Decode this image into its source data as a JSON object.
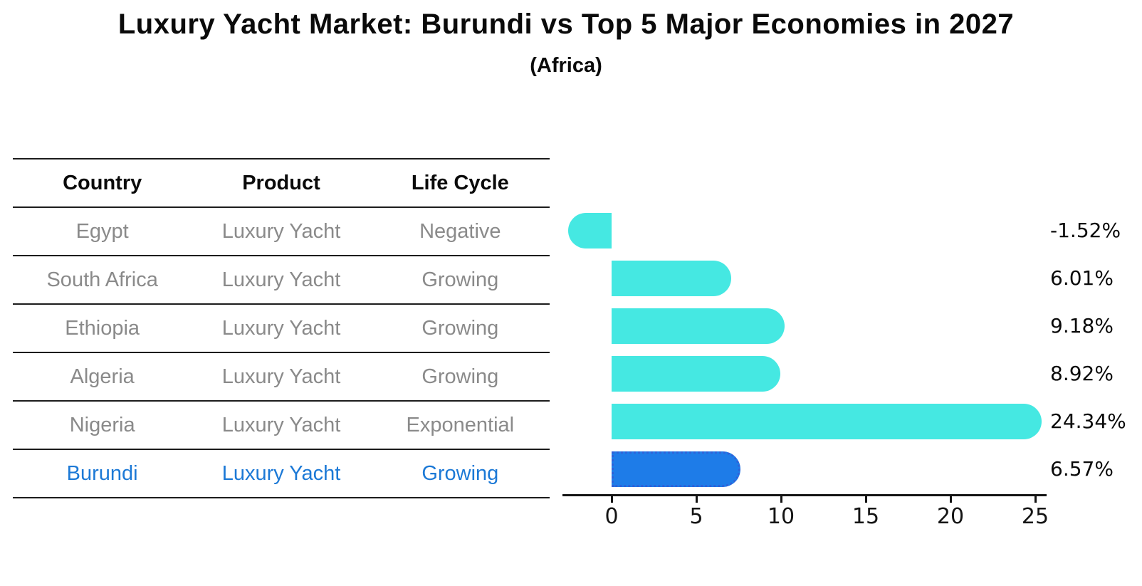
{
  "title": "Luxury Yacht Market: Burundi vs Top 5 Major Economies in 2027",
  "subtitle": "(Africa)",
  "table": {
    "headers": [
      "Country",
      "Product",
      "Life Cycle"
    ],
    "rows": [
      {
        "country": "Egypt",
        "product": "Luxury Yacht",
        "life_cycle": "Negative",
        "highlight": false
      },
      {
        "country": "South Africa",
        "product": "Luxury Yacht",
        "life_cycle": "Growing",
        "highlight": false
      },
      {
        "country": "Ethiopia",
        "product": "Luxury Yacht",
        "life_cycle": "Growing",
        "highlight": false
      },
      {
        "country": "Algeria",
        "product": "Luxury Yacht",
        "life_cycle": "Growing",
        "highlight": false
      },
      {
        "country": "Nigeria",
        "product": "Luxury Yacht",
        "life_cycle": "Exponential",
        "highlight": false
      },
      {
        "country": "Burundi",
        "product": "Luxury Yacht",
        "life_cycle": "Growing",
        "highlight": true
      }
    ]
  },
  "chart_data": {
    "type": "bar",
    "orientation": "horizontal",
    "title": "Luxury Yacht Market: Burundi vs Top 5 Major Economies in 2027 (Africa)",
    "categories": [
      "Egypt",
      "South Africa",
      "Ethiopia",
      "Algeria",
      "Nigeria",
      "Burundi"
    ],
    "values": [
      -1.52,
      6.01,
      9.18,
      8.92,
      24.34,
      6.57
    ],
    "value_labels": [
      "-1.52%",
      "6.01%",
      "9.18%",
      "8.92%",
      "24.34%",
      "6.57%"
    ],
    "x_ticks": [
      0,
      5,
      10,
      15,
      20,
      25
    ],
    "xlim": [
      -3,
      25.8
    ],
    "xlabel": "",
    "ylabel": "",
    "grid": false,
    "legend": "none",
    "highlighted_category": "Burundi"
  },
  "colors": {
    "bar": "#45E8E2",
    "highlight_bar": "#1E7CE8",
    "highlight_border": "#2F62D8",
    "highlight_text": "#1C79D6",
    "muted_text": "#8A8A8A",
    "line": "#1C1C1C"
  }
}
